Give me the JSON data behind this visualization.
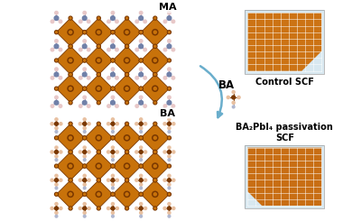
{
  "bg_color": "#ffffff",
  "crystal_color_face": "#c8720a",
  "crystal_color_edge": "#7a3800",
  "crystal_center_color": "#7a3800",
  "crystal_center_inner": "#c8720a",
  "top_label": "MA",
  "bottom_label": "BA",
  "control_label": "Control SCF",
  "passivation_label": "BA₂PbI₄ passivation\nSCF",
  "arrow_label": "BA",
  "photo_top_color": "#cc6d08",
  "photo_bottom_color": "#c86808",
  "photo_grid_color": "#ffffff",
  "photo_bg": "#dde8f0",
  "label_fontsize": 8,
  "arrow_fontsize": 7.5,
  "photo_label_fontsize": 7
}
